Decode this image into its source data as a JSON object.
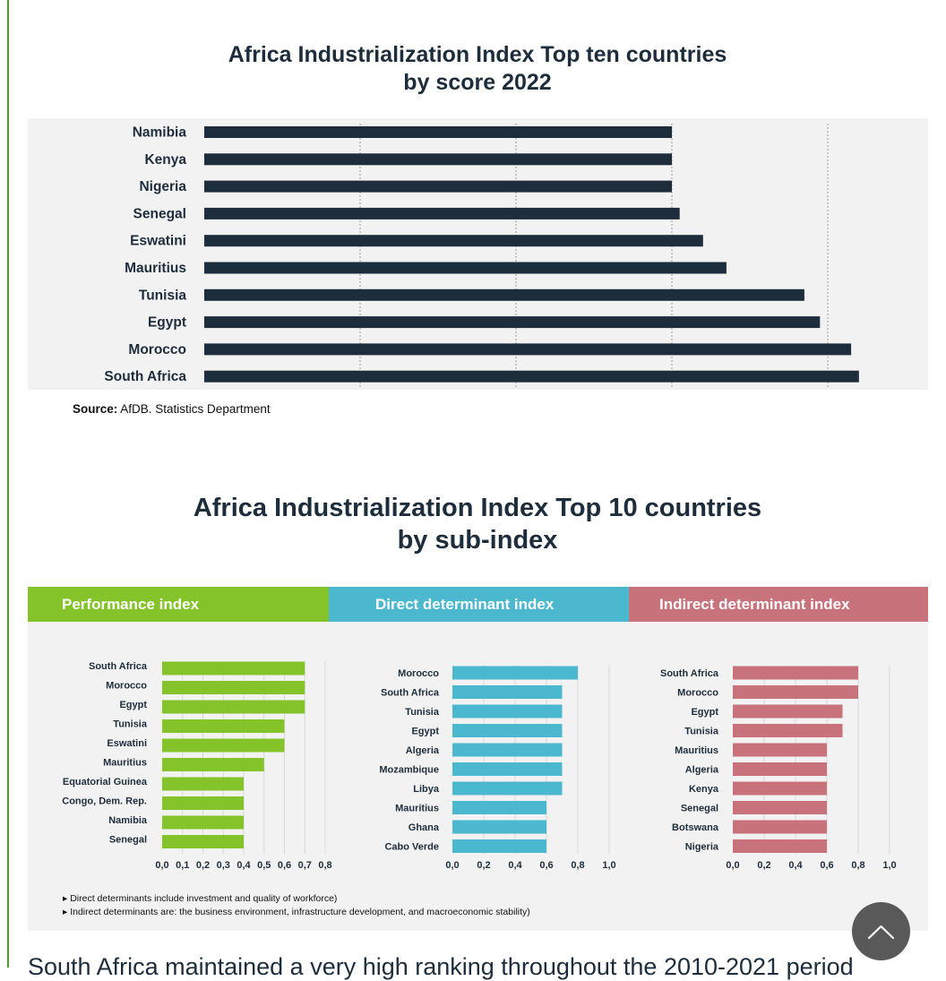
{
  "page": {
    "body_text": "South Africa maintained a very high ranking throughout the 2010-2021 period"
  },
  "chart_data": [
    {
      "type": "bar",
      "orientation": "horizontal",
      "title": "Africa Industrialization Index Top ten countries by score 2022",
      "title_lines": [
        "Africa Industrialization Index Top ten countries",
        "by score 2022"
      ],
      "categories": [
        "Namibia",
        "Kenya",
        "Nigeria",
        "Senegal",
        "Eswatini",
        "Mauritius",
        "Tunisia",
        "Egypt",
        "Morocco",
        "South Africa"
      ],
      "values": [
        0.6,
        0.6,
        0.6,
        0.61,
        0.64,
        0.67,
        0.77,
        0.79,
        0.83,
        0.84
      ],
      "xlim": [
        0,
        0.9
      ],
      "gridlines": [
        0.2,
        0.4,
        0.6,
        0.8
      ],
      "grid": true,
      "color": "#1e2d3c",
      "source_label": "Source:",
      "source": "AfDB. Statistics Department"
    },
    {
      "type": "bar",
      "orientation": "horizontal",
      "title": "Africa Industrialization Index Top 10 countries by sub-index",
      "title_lines": [
        "Africa Industrialization Index Top 10 countries",
        "by sub-index"
      ],
      "panels": [
        {
          "name": "Performance index",
          "color": "#84c42a",
          "categories": [
            "South Africa",
            "Morocco",
            "Egypt",
            "Tunisia",
            "Eswatini",
            "Mauritius",
            "Equatorial Guinea",
            "Congo, Dem. Rep.",
            "Namibia",
            "Senegal"
          ],
          "values": [
            0.7,
            0.7,
            0.7,
            0.6,
            0.6,
            0.5,
            0.4,
            0.4,
            0.4,
            0.4
          ],
          "xlim": [
            0,
            0.8
          ],
          "ticks": [
            "0,0",
            "0,1",
            "0,2",
            "0,3",
            "0,4",
            "0,5",
            "0,6",
            "0,7",
            "0,8"
          ]
        },
        {
          "name": "Direct determinant index",
          "color": "#4bb8cf",
          "categories": [
            "Morocco",
            "South Africa",
            "Tunisia",
            "Egypt",
            "Algeria",
            "Mozambique",
            "Libya",
            "Mauritius",
            "Ghana",
            "Cabo Verde"
          ],
          "values": [
            0.8,
            0.7,
            0.7,
            0.7,
            0.7,
            0.7,
            0.7,
            0.6,
            0.6,
            0.6
          ],
          "xlim": [
            0,
            1.0
          ],
          "ticks": [
            "0,0",
            "0,2",
            "0,4",
            "0,6",
            "0,8",
            "1,0"
          ]
        },
        {
          "name": "Indirect determinant index",
          "color": "#c8737c",
          "categories": [
            "South Africa",
            "Morocco",
            "Egypt",
            "Tunisia",
            "Mauritius",
            "Algeria",
            "Kenya",
            "Senegal",
            "Botswana",
            "Nigeria"
          ],
          "values": [
            0.8,
            0.8,
            0.7,
            0.7,
            0.6,
            0.6,
            0.6,
            0.6,
            0.6,
            0.6
          ],
          "xlim": [
            0,
            1.0
          ],
          "ticks": [
            "0,0",
            "0,2",
            "0,4",
            "0,6",
            "0,8",
            "1,0"
          ]
        }
      ],
      "notes": [
        "▸ Direct determinants include investment and quality of workforce)",
        "▸ Indirect determinants are: the business environment, infrastructure development, and macroeconomic stability)"
      ]
    }
  ],
  "icons": {
    "scroll_top": "chevron-up-icon"
  }
}
